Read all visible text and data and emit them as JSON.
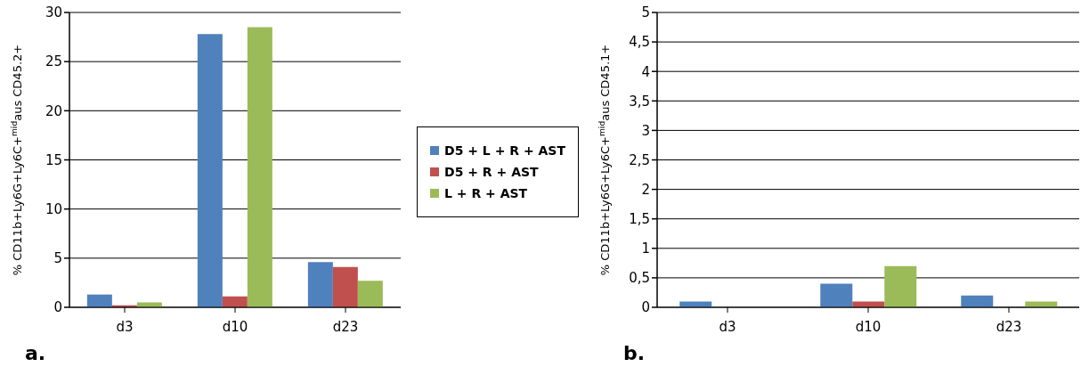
{
  "chart_data": [
    {
      "type": "bar",
      "categories": [
        "d3",
        "d10",
        "d23"
      ],
      "ylabel": "% CD11b+Ly6G+Ly6C+$^{mid}$aus CD45.2+",
      "ylim": [
        0,
        30
      ],
      "yticks": [
        0,
        5,
        10,
        15,
        20,
        25,
        30
      ],
      "grid": "y",
      "legend": "right",
      "annotations": [
        "a."
      ],
      "series": [
        {
          "name": "D5 + L + R + AST",
          "color": "#4f81bd",
          "values": [
            1.3,
            27.8,
            4.6
          ]
        },
        {
          "name": "D5 + R + AST",
          "color": "#c0504d",
          "values": [
            0.2,
            1.1,
            4.1
          ]
        },
        {
          "name": "L + R + AST",
          "color": "#9bbb59",
          "values": [
            0.5,
            28.5,
            2.7
          ]
        }
      ]
    },
    {
      "type": "bar",
      "categories": [
        "d3",
        "d10",
        "d23"
      ],
      "ylabel": "% CD11b+Ly6G+Ly6C+$^{mid}$aus CD45.1+",
      "ylim": [
        0,
        5
      ],
      "yticks": [
        0,
        {
          "value": 0.5,
          "label": "0,5"
        },
        1,
        {
          "value": 1.5,
          "label": "1,5"
        },
        2,
        {
          "value": 2.5,
          "label": "2,5"
        },
        3,
        {
          "value": 3.5,
          "label": "3,5"
        },
        4,
        {
          "value": 4.5,
          "label": "4,5"
        },
        5
      ],
      "grid": "y",
      "annotations": [
        "b."
      ],
      "series": [
        {
          "color": "#4f81bd",
          "values": [
            0.1,
            0.4,
            0.2
          ]
        },
        {
          "color": "#c0504d",
          "values": [
            0,
            0.1,
            0
          ]
        },
        {
          "color": "#9bbb59",
          "values": [
            0,
            0.7,
            0.1
          ]
        }
      ]
    }
  ]
}
